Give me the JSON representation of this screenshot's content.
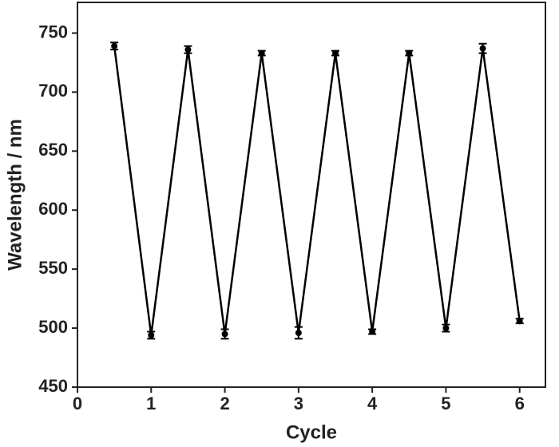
{
  "chart_data": {
    "type": "line",
    "x_label": "Cycle",
    "y_label": "Wavelength / nm",
    "x": [
      0.5,
      1,
      1.5,
      2,
      2.5,
      3,
      3.5,
      4,
      4.5,
      5,
      5.5,
      6
    ],
    "series": [
      {
        "color": "#000000",
        "values": [
          739,
          494,
          736,
          495,
          733,
          496,
          733,
          497,
          733,
          500,
          737,
          506
        ],
        "errors": [
          3,
          3,
          3,
          4,
          2,
          5,
          2,
          2,
          2,
          3,
          4,
          2
        ]
      }
    ],
    "xlim": [
      0,
      6.35
    ],
    "xticks": [
      0,
      1,
      2,
      3,
      4,
      5,
      6
    ],
    "ylim": [
      450,
      776
    ],
    "yticks": [
      450,
      500,
      550,
      600,
      650,
      700,
      750
    ],
    "grid": false
  }
}
